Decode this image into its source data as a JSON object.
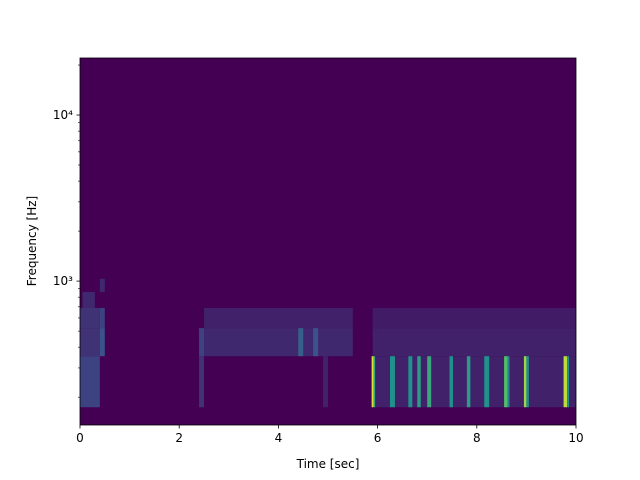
{
  "chart_data": {
    "type": "spectrogram",
    "xlabel": "Time [sec]",
    "ylabel": "Frequency [Hz]",
    "xlim": [
      0,
      10
    ],
    "xticks": [
      0,
      2,
      4,
      6,
      8,
      10
    ],
    "ylim": [
      136,
      22050
    ],
    "yscale": "log",
    "yticks": [
      {
        "value": 1000,
        "label": "10³"
      },
      {
        "value": 10000,
        "label": "10⁴"
      }
    ],
    "yminorticks": [
      200,
      300,
      400,
      500,
      600,
      700,
      800,
      900,
      2000,
      3000,
      4000,
      5000,
      6000,
      7000,
      8000,
      9000,
      20000
    ],
    "clim": [
      0,
      1
    ],
    "colors": [
      "#440154",
      "#3b528b",
      "#21918c",
      "#5ec962",
      "#fde725"
    ],
    "cells": [
      {
        "t": [
          0,
          0.4
        ],
        "f": [
          174,
          353
        ],
        "v": 0.2
      },
      {
        "t": [
          0,
          0.4
        ],
        "f": [
          353,
          521
        ],
        "v": 0.15
      },
      {
        "t": [
          0,
          0.4
        ],
        "f": [
          521,
          689
        ],
        "v": 0.15
      },
      {
        "t": [
          0.05,
          0.3
        ],
        "f": [
          689,
          861
        ],
        "v": 0.12
      },
      {
        "t": [
          0.4,
          0.5
        ],
        "f": [
          353,
          521
        ],
        "v": 0.25
      },
      {
        "t": [
          0.4,
          0.5
        ],
        "f": [
          521,
          689
        ],
        "v": 0.2
      },
      {
        "t": [
          0.4,
          0.5
        ],
        "f": [
          861,
          1033
        ],
        "v": 0.12
      },
      {
        "t": [
          2.5,
          5.5
        ],
        "f": [
          353,
          521
        ],
        "v": 0.12
      },
      {
        "t": [
          2.5,
          5.5
        ],
        "f": [
          521,
          689
        ],
        "v": 0.1
      },
      {
        "t": [
          5.9,
          10
        ],
        "f": [
          353,
          521
        ],
        "v": 0.1
      },
      {
        "t": [
          5.9,
          10
        ],
        "f": [
          521,
          689
        ],
        "v": 0.08
      },
      {
        "t": [
          5.9,
          10
        ],
        "f": [
          174,
          353
        ],
        "v": 0.1
      },
      {
        "t": [
          2.4,
          2.5
        ],
        "f": [
          174,
          353
        ],
        "v": 0.15
      },
      {
        "t": [
          2.4,
          2.5
        ],
        "f": [
          353,
          521
        ],
        "v": 0.2
      },
      {
        "t": [
          4.4,
          4.5
        ],
        "f": [
          353,
          521
        ],
        "v": 0.3
      },
      {
        "t": [
          4.7,
          4.8
        ],
        "f": [
          353,
          521
        ],
        "v": 0.25
      },
      {
        "t": [
          4.9,
          5.0
        ],
        "f": [
          174,
          353
        ],
        "v": 0.1
      },
      {
        "t": [
          5.88,
          5.92
        ],
        "f": [
          174,
          353
        ],
        "v": 0.95
      },
      {
        "t": [
          5.92,
          5.95
        ],
        "f": [
          174,
          353
        ],
        "v": 0.6
      },
      {
        "t": [
          6.25,
          6.35
        ],
        "f": [
          174,
          353
        ],
        "v": 0.5
      },
      {
        "t": [
          6.62,
          6.7
        ],
        "f": [
          174,
          353
        ],
        "v": 0.5
      },
      {
        "t": [
          6.8,
          6.87
        ],
        "f": [
          174,
          353
        ],
        "v": 0.55
      },
      {
        "t": [
          7.0,
          7.08
        ],
        "f": [
          174,
          353
        ],
        "v": 0.6
      },
      {
        "t": [
          7.45,
          7.52
        ],
        "f": [
          174,
          353
        ],
        "v": 0.5
      },
      {
        "t": [
          7.8,
          7.87
        ],
        "f": [
          174,
          353
        ],
        "v": 0.55
      },
      {
        "t": [
          8.15,
          8.25
        ],
        "f": [
          174,
          353
        ],
        "v": 0.5
      },
      {
        "t": [
          8.55,
          8.62
        ],
        "f": [
          174,
          353
        ],
        "v": 0.7
      },
      {
        "t": [
          8.62,
          8.66
        ],
        "f": [
          174,
          353
        ],
        "v": 0.45
      },
      {
        "t": [
          8.95,
          9.0
        ],
        "f": [
          174,
          353
        ],
        "v": 0.85
      },
      {
        "t": [
          9.0,
          9.05
        ],
        "f": [
          174,
          353
        ],
        "v": 0.5
      },
      {
        "t": [
          9.75,
          9.82
        ],
        "f": [
          174,
          353
        ],
        "v": 0.9
      },
      {
        "t": [
          9.82,
          9.86
        ],
        "f": [
          174,
          353
        ],
        "v": 0.5
      }
    ]
  }
}
